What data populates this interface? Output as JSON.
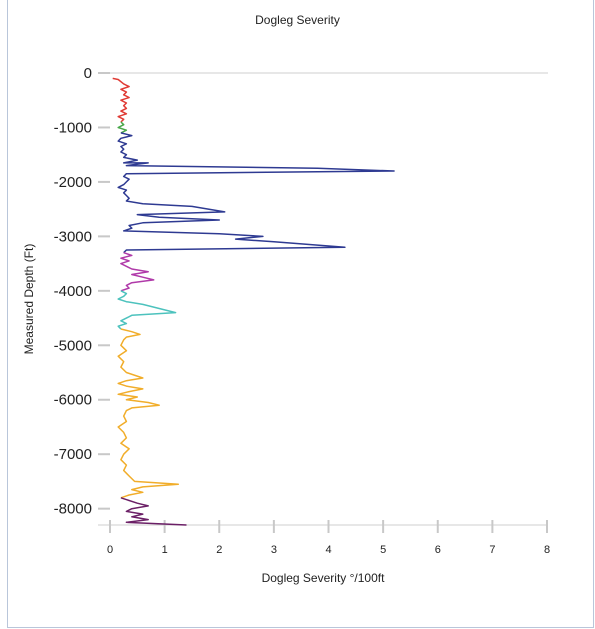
{
  "chart_data": {
    "type": "line",
    "title": "Dogleg Severity",
    "xlabel": "Dogleg Severity °/100ft",
    "ylabel": "Measured Depth (Ft)",
    "xlim": [
      0,
      8
    ],
    "ylim": [
      0,
      -8300
    ],
    "x_ticks": [
      "0",
      "1",
      "2",
      "3",
      "4",
      "5",
      "6",
      "7",
      "8"
    ],
    "y_ticks": [
      "0",
      "-1000",
      "-2000",
      "-3000",
      "-4000",
      "-5000",
      "-6000",
      "-7000",
      "-8000"
    ],
    "grid": false,
    "series": [
      {
        "color": "#e03b35",
        "points": [
          [
            0.05,
            -100
          ],
          [
            0.15,
            -120
          ],
          [
            0.25,
            -200
          ],
          [
            0.35,
            -250
          ],
          [
            0.2,
            -300
          ],
          [
            0.3,
            -350
          ],
          [
            0.25,
            -400
          ],
          [
            0.35,
            -450
          ],
          [
            0.2,
            -500
          ],
          [
            0.3,
            -550
          ],
          [
            0.25,
            -600
          ],
          [
            0.3,
            -650
          ],
          [
            0.2,
            -700
          ],
          [
            0.3,
            -750
          ],
          [
            0.15,
            -800
          ],
          [
            0.25,
            -850
          ],
          [
            0.2,
            -900
          ]
        ]
      },
      {
        "color": "#49a84a",
        "points": [
          [
            0.2,
            -900
          ],
          [
            0.25,
            -950
          ],
          [
            0.15,
            -1000
          ],
          [
            0.3,
            -1050
          ],
          [
            0.2,
            -1100
          ]
        ]
      },
      {
        "color": "#2e3a92",
        "points": [
          [
            0.2,
            -1100
          ],
          [
            0.4,
            -1150
          ],
          [
            0.2,
            -1200
          ],
          [
            0.15,
            -1250
          ],
          [
            0.3,
            -1300
          ],
          [
            0.2,
            -1350
          ],
          [
            0.25,
            -1400
          ],
          [
            0.2,
            -1450
          ],
          [
            0.3,
            -1500
          ],
          [
            0.25,
            -1550
          ],
          [
            0.5,
            -1600
          ],
          [
            0.25,
            -1650
          ],
          [
            0.7,
            -1650
          ],
          [
            0.3,
            -1700
          ],
          [
            3.8,
            -1750
          ],
          [
            5.2,
            -1800
          ],
          [
            0.3,
            -1850
          ],
          [
            0.25,
            -1900
          ],
          [
            0.35,
            -1950
          ],
          [
            0.3,
            -2000
          ],
          [
            0.25,
            -2050
          ],
          [
            0.15,
            -2100
          ],
          [
            0.3,
            -2150
          ],
          [
            0.25,
            -2200
          ],
          [
            0.3,
            -2250
          ],
          [
            0.35,
            -2300
          ],
          [
            0.3,
            -2350
          ],
          [
            0.6,
            -2400
          ],
          [
            1.5,
            -2450
          ],
          [
            2.1,
            -2550
          ],
          [
            0.5,
            -2600
          ],
          [
            0.9,
            -2650
          ],
          [
            2.0,
            -2700
          ],
          [
            0.6,
            -2750
          ],
          [
            0.35,
            -2800
          ],
          [
            0.4,
            -2850
          ],
          [
            0.25,
            -2900
          ],
          [
            2.0,
            -2950
          ],
          [
            2.8,
            -3000
          ],
          [
            2.3,
            -3050
          ],
          [
            3.0,
            -3100
          ],
          [
            4.3,
            -3200
          ],
          [
            0.3,
            -3250
          ],
          [
            0.25,
            -3300
          ]
        ]
      },
      {
        "color": "#b03aa9",
        "points": [
          [
            0.25,
            -3300
          ],
          [
            0.4,
            -3350
          ],
          [
            0.2,
            -3400
          ],
          [
            0.35,
            -3450
          ],
          [
            0.2,
            -3500
          ],
          [
            0.3,
            -3550
          ],
          [
            0.4,
            -3600
          ],
          [
            0.7,
            -3650
          ],
          [
            0.4,
            -3700
          ],
          [
            0.6,
            -3750
          ],
          [
            0.8,
            -3800
          ],
          [
            0.4,
            -3850
          ],
          [
            0.3,
            -3900
          ],
          [
            0.35,
            -3950
          ],
          [
            0.2,
            -4000
          ]
        ]
      },
      {
        "color": "#4cc2bd",
        "points": [
          [
            0.2,
            -4000
          ],
          [
            0.3,
            -4050
          ],
          [
            0.25,
            -4100
          ],
          [
            0.15,
            -4150
          ],
          [
            0.3,
            -4200
          ],
          [
            0.6,
            -4250
          ],
          [
            1.2,
            -4400
          ],
          [
            0.4,
            -4450
          ],
          [
            0.3,
            -4500
          ],
          [
            0.2,
            -4550
          ],
          [
            0.3,
            -4600
          ],
          [
            0.15,
            -4650
          ],
          [
            0.2,
            -4700
          ]
        ]
      },
      {
        "color": "#f1ad2a",
        "points": [
          [
            0.2,
            -4700
          ],
          [
            0.4,
            -4750
          ],
          [
            0.55,
            -4800
          ],
          [
            0.3,
            -4850
          ],
          [
            0.25,
            -4900
          ],
          [
            0.2,
            -5000
          ],
          [
            0.3,
            -5100
          ],
          [
            0.15,
            -5200
          ],
          [
            0.25,
            -5300
          ],
          [
            0.2,
            -5400
          ],
          [
            0.3,
            -5500
          ],
          [
            0.6,
            -5600
          ],
          [
            0.3,
            -5650
          ],
          [
            0.15,
            -5700
          ],
          [
            0.3,
            -5750
          ],
          [
            0.6,
            -5800
          ],
          [
            0.35,
            -5850
          ],
          [
            0.15,
            -5900
          ],
          [
            0.5,
            -5950
          ],
          [
            0.3,
            -6000
          ],
          [
            0.7,
            -6050
          ],
          [
            0.9,
            -6100
          ],
          [
            0.4,
            -6150
          ],
          [
            0.3,
            -6200
          ],
          [
            0.25,
            -6300
          ],
          [
            0.3,
            -6400
          ],
          [
            0.15,
            -6500
          ],
          [
            0.25,
            -6600
          ],
          [
            0.3,
            -6700
          ],
          [
            0.2,
            -6800
          ],
          [
            0.35,
            -6900
          ],
          [
            0.25,
            -7000
          ],
          [
            0.2,
            -7100
          ],
          [
            0.3,
            -7200
          ],
          [
            0.25,
            -7300
          ],
          [
            0.35,
            -7400
          ],
          [
            0.45,
            -7500
          ],
          [
            1.25,
            -7550
          ],
          [
            0.6,
            -7600
          ],
          [
            0.4,
            -7650
          ],
          [
            0.6,
            -7700
          ],
          [
            0.35,
            -7750
          ],
          [
            0.2,
            -7800
          ]
        ]
      },
      {
        "color": "#6b1f66",
        "points": [
          [
            0.2,
            -7800
          ],
          [
            0.5,
            -7900
          ],
          [
            0.7,
            -7950
          ],
          [
            0.4,
            -8000
          ],
          [
            0.3,
            -8050
          ],
          [
            0.6,
            -8100
          ],
          [
            0.4,
            -8150
          ],
          [
            0.7,
            -8200
          ],
          [
            0.3,
            -8250
          ],
          [
            1.4,
            -8300
          ]
        ]
      }
    ]
  }
}
